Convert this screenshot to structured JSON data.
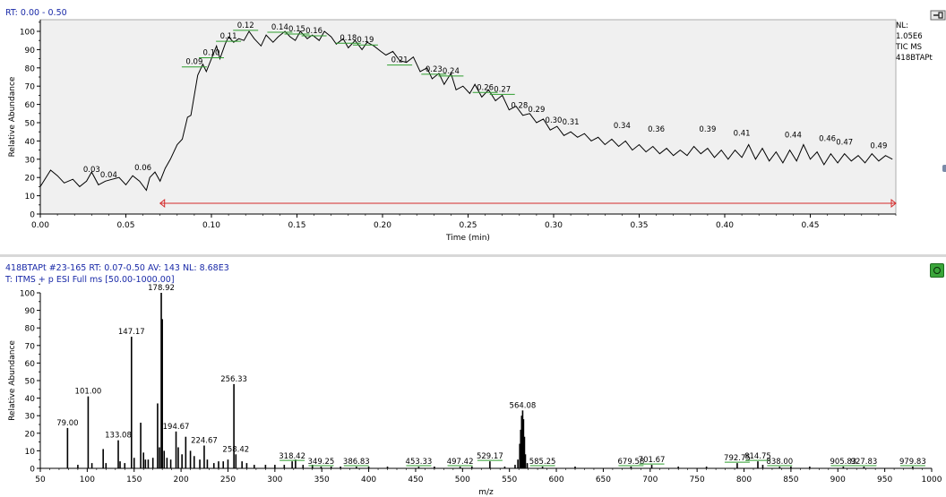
{
  "chromatogram": {
    "header": "RT: 0.00 - 0.50",
    "nl": [
      "NL:",
      "1.05E6",
      "TIC  MS",
      "418BTAPt"
    ]
  },
  "spectrum": {
    "header1": "418BTAPt #23-165   RT: 0.07-0.50   AV: 143   NL: 8.68E3",
    "header2": "T: ITMS + p ESI Full ms [50.00-1000.00]"
  },
  "colors": {
    "trace": "#000000",
    "axis": "#000000",
    "plot_bg": "#f0f0f0",
    "header_text": "#1a2aa8",
    "range_bar": "#d42a2a",
    "peak_tick": "#2e9e2e"
  },
  "icons": {
    "pin": "pin-icon",
    "spectrum_button": "spectrum-button-icon"
  },
  "chart_data": [
    {
      "type": "line",
      "xlabel": "Time (min)",
      "ylabel": "Relative Abundance",
      "xlim": [
        0.0,
        0.5
      ],
      "ylim": [
        0,
        100
      ],
      "x_ticks": [
        "0.00",
        "0.05",
        "0.10",
        "0.15",
        "0.20",
        "0.25",
        "0.30",
        "0.35",
        "0.40",
        "0.45"
      ],
      "y_ticks": [
        "0",
        "10",
        "20",
        "30",
        "40",
        "50",
        "60",
        "70",
        "80",
        "90",
        "100"
      ],
      "grid": false,
      "selected_range": [
        0.07,
        0.5
      ],
      "points": [
        [
          0.0,
          15
        ],
        [
          0.006,
          24
        ],
        [
          0.01,
          21
        ],
        [
          0.014,
          17
        ],
        [
          0.019,
          19
        ],
        [
          0.023,
          15
        ],
        [
          0.027,
          18
        ],
        [
          0.03,
          23
        ],
        [
          0.034,
          16
        ],
        [
          0.038,
          18
        ],
        [
          0.042,
          19
        ],
        [
          0.046,
          20
        ],
        [
          0.05,
          16
        ],
        [
          0.054,
          21
        ],
        [
          0.058,
          18
        ],
        [
          0.062,
          13
        ],
        [
          0.064,
          20
        ],
        [
          0.067,
          23
        ],
        [
          0.07,
          18
        ],
        [
          0.073,
          25
        ],
        [
          0.076,
          30
        ],
        [
          0.08,
          38
        ],
        [
          0.083,
          41
        ],
        [
          0.086,
          53
        ],
        [
          0.088,
          54
        ],
        [
          0.09,
          65
        ],
        [
          0.092,
          76
        ],
        [
          0.095,
          82
        ],
        [
          0.097,
          78
        ],
        [
          0.1,
          85
        ],
        [
          0.103,
          92
        ],
        [
          0.105,
          85
        ],
        [
          0.108,
          93
        ],
        [
          0.11,
          97
        ],
        [
          0.113,
          94
        ],
        [
          0.116,
          96
        ],
        [
          0.119,
          95
        ],
        [
          0.122,
          100
        ],
        [
          0.125,
          96
        ],
        [
          0.129,
          92
        ],
        [
          0.132,
          98
        ],
        [
          0.136,
          94
        ],
        [
          0.139,
          97
        ],
        [
          0.143,
          100
        ],
        [
          0.146,
          97
        ],
        [
          0.149,
          95
        ],
        [
          0.152,
          100
        ],
        [
          0.156,
          96
        ],
        [
          0.159,
          98
        ],
        [
          0.163,
          95
        ],
        [
          0.166,
          100
        ],
        [
          0.17,
          97
        ],
        [
          0.173,
          93
        ],
        [
          0.177,
          96
        ],
        [
          0.18,
          91
        ],
        [
          0.184,
          95
        ],
        [
          0.188,
          90
        ],
        [
          0.191,
          94
        ],
        [
          0.195,
          92
        ],
        [
          0.199,
          89
        ],
        [
          0.202,
          87
        ],
        [
          0.206,
          89
        ],
        [
          0.21,
          84
        ],
        [
          0.214,
          83
        ],
        [
          0.218,
          86
        ],
        [
          0.222,
          78
        ],
        [
          0.226,
          80
        ],
        [
          0.229,
          74
        ],
        [
          0.233,
          77
        ],
        [
          0.236,
          71
        ],
        [
          0.24,
          77
        ],
        [
          0.243,
          68
        ],
        [
          0.247,
          70
        ],
        [
          0.251,
          66
        ],
        [
          0.254,
          71
        ],
        [
          0.258,
          64
        ],
        [
          0.262,
          68
        ],
        [
          0.266,
          62
        ],
        [
          0.27,
          65
        ],
        [
          0.274,
          57
        ],
        [
          0.278,
          59
        ],
        [
          0.282,
          54
        ],
        [
          0.286,
          55
        ],
        [
          0.29,
          50
        ],
        [
          0.294,
          52
        ],
        [
          0.298,
          46
        ],
        [
          0.302,
          48
        ],
        [
          0.306,
          43
        ],
        [
          0.31,
          45
        ],
        [
          0.314,
          42
        ],
        [
          0.318,
          44
        ],
        [
          0.322,
          40
        ],
        [
          0.326,
          42
        ],
        [
          0.33,
          38
        ],
        [
          0.334,
          41
        ],
        [
          0.338,
          37
        ],
        [
          0.342,
          40
        ],
        [
          0.346,
          35
        ],
        [
          0.35,
          38
        ],
        [
          0.354,
          34
        ],
        [
          0.358,
          37
        ],
        [
          0.362,
          33
        ],
        [
          0.366,
          36
        ],
        [
          0.37,
          32
        ],
        [
          0.374,
          35
        ],
        [
          0.378,
          32
        ],
        [
          0.382,
          37
        ],
        [
          0.386,
          33
        ],
        [
          0.39,
          36
        ],
        [
          0.394,
          31
        ],
        [
          0.398,
          35
        ],
        [
          0.402,
          30
        ],
        [
          0.406,
          35
        ],
        [
          0.41,
          31
        ],
        [
          0.414,
          38
        ],
        [
          0.418,
          30
        ],
        [
          0.422,
          36
        ],
        [
          0.426,
          29
        ],
        [
          0.43,
          34
        ],
        [
          0.434,
          28
        ],
        [
          0.438,
          35
        ],
        [
          0.442,
          29
        ],
        [
          0.446,
          38
        ],
        [
          0.45,
          30
        ],
        [
          0.454,
          34
        ],
        [
          0.458,
          27
        ],
        [
          0.462,
          33
        ],
        [
          0.466,
          28
        ],
        [
          0.47,
          33
        ],
        [
          0.474,
          29
        ],
        [
          0.478,
          32
        ],
        [
          0.482,
          28
        ],
        [
          0.486,
          33
        ],
        [
          0.49,
          29
        ],
        [
          0.494,
          32
        ],
        [
          0.498,
          30
        ]
      ],
      "peak_labels": [
        {
          "x": 0.03,
          "y": 23,
          "label": "0.03"
        },
        {
          "x": 0.04,
          "y": 20,
          "label": "0.04"
        },
        {
          "x": 0.06,
          "y": 24,
          "label": "0.06"
        },
        {
          "x": 0.09,
          "y": 82,
          "label": "0.09"
        },
        {
          "x": 0.1,
          "y": 87,
          "label": "0.10"
        },
        {
          "x": 0.11,
          "y": 96,
          "label": "0.11"
        },
        {
          "x": 0.12,
          "y": 102,
          "label": "0.12"
        },
        {
          "x": 0.14,
          "y": 101,
          "label": "0.14"
        },
        {
          "x": 0.15,
          "y": 100,
          "label": "0.15"
        },
        {
          "x": 0.16,
          "y": 99,
          "label": "0.16"
        },
        {
          "x": 0.18,
          "y": 95,
          "label": "0.18"
        },
        {
          "x": 0.19,
          "y": 94,
          "label": "0.19"
        },
        {
          "x": 0.21,
          "y": 83,
          "label": "0.21"
        },
        {
          "x": 0.23,
          "y": 78,
          "label": "0.23"
        },
        {
          "x": 0.24,
          "y": 77,
          "label": "0.24"
        },
        {
          "x": 0.26,
          "y": 68,
          "label": "0.26"
        },
        {
          "x": 0.27,
          "y": 67,
          "label": "0.27"
        },
        {
          "x": 0.28,
          "y": 58,
          "label": "0.28"
        },
        {
          "x": 0.29,
          "y": 56,
          "label": "0.29"
        },
        {
          "x": 0.3,
          "y": 50,
          "label": "0.30"
        },
        {
          "x": 0.31,
          "y": 49,
          "label": "0.31"
        },
        {
          "x": 0.34,
          "y": 47,
          "label": "0.34"
        },
        {
          "x": 0.36,
          "y": 45,
          "label": "0.36"
        },
        {
          "x": 0.39,
          "y": 45,
          "label": "0.39"
        },
        {
          "x": 0.41,
          "y": 43,
          "label": "0.41"
        },
        {
          "x": 0.44,
          "y": 42,
          "label": "0.44"
        },
        {
          "x": 0.46,
          "y": 40,
          "label": "0.46"
        },
        {
          "x": 0.47,
          "y": 38,
          "label": "0.47"
        },
        {
          "x": 0.49,
          "y": 36,
          "label": "0.49"
        }
      ]
    },
    {
      "type": "bar",
      "xlabel": "m/z",
      "ylabel": "Relative Abundance",
      "xlim": [
        50,
        1000
      ],
      "ylim": [
        0,
        100
      ],
      "x_ticks": [
        "50",
        "100",
        "150",
        "200",
        "250",
        "300",
        "350",
        "400",
        "450",
        "500",
        "550",
        "600",
        "650",
        "700",
        "750",
        "800",
        "850",
        "900",
        "950",
        "1000"
      ],
      "y_ticks": [
        "0",
        "10",
        "20",
        "30",
        "40",
        "50",
        "60",
        "70",
        "80",
        "90",
        "100"
      ],
      "grid": false,
      "peaks": [
        [
          79.0,
          23
        ],
        [
          90.0,
          2
        ],
        [
          101.0,
          41
        ],
        [
          105.0,
          3
        ],
        [
          117.0,
          11
        ],
        [
          120.0,
          3
        ],
        [
          133.08,
          16
        ],
        [
          135.0,
          4
        ],
        [
          140.0,
          3
        ],
        [
          147.17,
          75
        ],
        [
          150.0,
          6
        ],
        [
          157.0,
          26
        ],
        [
          160.0,
          9
        ],
        [
          162.0,
          5
        ],
        [
          165.0,
          5
        ],
        [
          170.0,
          6
        ],
        [
          175.0,
          37
        ],
        [
          177.0,
          12
        ],
        [
          178.92,
          100
        ],
        [
          180.0,
          85
        ],
        [
          182.0,
          10
        ],
        [
          185.0,
          6
        ],
        [
          189.0,
          5
        ],
        [
          194.67,
          21
        ],
        [
          197.0,
          12
        ],
        [
          201.0,
          8
        ],
        [
          205.0,
          18
        ],
        [
          210.0,
          10
        ],
        [
          214.0,
          7
        ],
        [
          220.0,
          5
        ],
        [
          224.67,
          13
        ],
        [
          228.0,
          5
        ],
        [
          235.0,
          3
        ],
        [
          240.0,
          4
        ],
        [
          245.0,
          4
        ],
        [
          250.0,
          5
        ],
        [
          256.33,
          48
        ],
        [
          258.42,
          8
        ],
        [
          265.0,
          4
        ],
        [
          270.0,
          3
        ],
        [
          278.0,
          2
        ],
        [
          290.0,
          2
        ],
        [
          300.0,
          2
        ],
        [
          310.0,
          2
        ],
        [
          318.42,
          4
        ],
        [
          322.0,
          5
        ],
        [
          330.0,
          2
        ],
        [
          340.0,
          2
        ],
        [
          349.25,
          1
        ],
        [
          360.0,
          1
        ],
        [
          370.0,
          1
        ],
        [
          386.83,
          1
        ],
        [
          400.0,
          1
        ],
        [
          420.0,
          1
        ],
        [
          453.33,
          1
        ],
        [
          470.0,
          1
        ],
        [
          497.42,
          1
        ],
        [
          510.0,
          1
        ],
        [
          529.17,
          4
        ],
        [
          545.0,
          1
        ],
        [
          556.0,
          2
        ],
        [
          559.0,
          5
        ],
        [
          561.0,
          14
        ],
        [
          562.0,
          22
        ],
        [
          563.0,
          30
        ],
        [
          564.08,
          33
        ],
        [
          565.0,
          28
        ],
        [
          566.0,
          18
        ],
        [
          567.0,
          8
        ],
        [
          569.0,
          3
        ],
        [
          585.25,
          1
        ],
        [
          620.0,
          1
        ],
        [
          679.58,
          1
        ],
        [
          701.67,
          2
        ],
        [
          730.0,
          1
        ],
        [
          760.0,
          1
        ],
        [
          792.75,
          3
        ],
        [
          814.75,
          4
        ],
        [
          820.0,
          2
        ],
        [
          838.0,
          1
        ],
        [
          850.0,
          1
        ],
        [
          870.0,
          1
        ],
        [
          905.83,
          1
        ],
        [
          927.83,
          1
        ],
        [
          979.83,
          1
        ]
      ],
      "peak_labels": [
        {
          "x": 79.0,
          "y": 23,
          "label": "79.00"
        },
        {
          "x": 101.0,
          "y": 41,
          "label": "101.00"
        },
        {
          "x": 133.08,
          "y": 16,
          "label": "133.08"
        },
        {
          "x": 147.17,
          "y": 75,
          "label": "147.17"
        },
        {
          "x": 178.92,
          "y": 100,
          "label": "178.92"
        },
        {
          "x": 194.67,
          "y": 21,
          "label": "194.67"
        },
        {
          "x": 224.67,
          "y": 13,
          "label": "224.67"
        },
        {
          "x": 256.33,
          "y": 48,
          "label": "256.33"
        },
        {
          "x": 258.42,
          "y": 8,
          "label": "258.42"
        },
        {
          "x": 318.42,
          "y": 4,
          "label": "318.42"
        },
        {
          "x": 349.25,
          "y": 1,
          "label": "349.25"
        },
        {
          "x": 386.83,
          "y": 1,
          "label": "386.83"
        },
        {
          "x": 453.33,
          "y": 1,
          "label": "453.33"
        },
        {
          "x": 497.42,
          "y": 1,
          "label": "497.42"
        },
        {
          "x": 529.17,
          "y": 4,
          "label": "529.17"
        },
        {
          "x": 564.08,
          "y": 33,
          "label": "564.08"
        },
        {
          "x": 585.25,
          "y": 1,
          "label": "585.25"
        },
        {
          "x": 679.58,
          "y": 1,
          "label": "679.58"
        },
        {
          "x": 701.67,
          "y": 2,
          "label": "701.67"
        },
        {
          "x": 792.75,
          "y": 3,
          "label": "792.75"
        },
        {
          "x": 814.75,
          "y": 4,
          "label": "814.75"
        },
        {
          "x": 838.0,
          "y": 1,
          "label": "838.00"
        },
        {
          "x": 905.83,
          "y": 1,
          "label": "905.83"
        },
        {
          "x": 927.83,
          "y": 1,
          "label": "927.83"
        },
        {
          "x": 979.83,
          "y": 1,
          "label": "979.83"
        }
      ]
    }
  ]
}
